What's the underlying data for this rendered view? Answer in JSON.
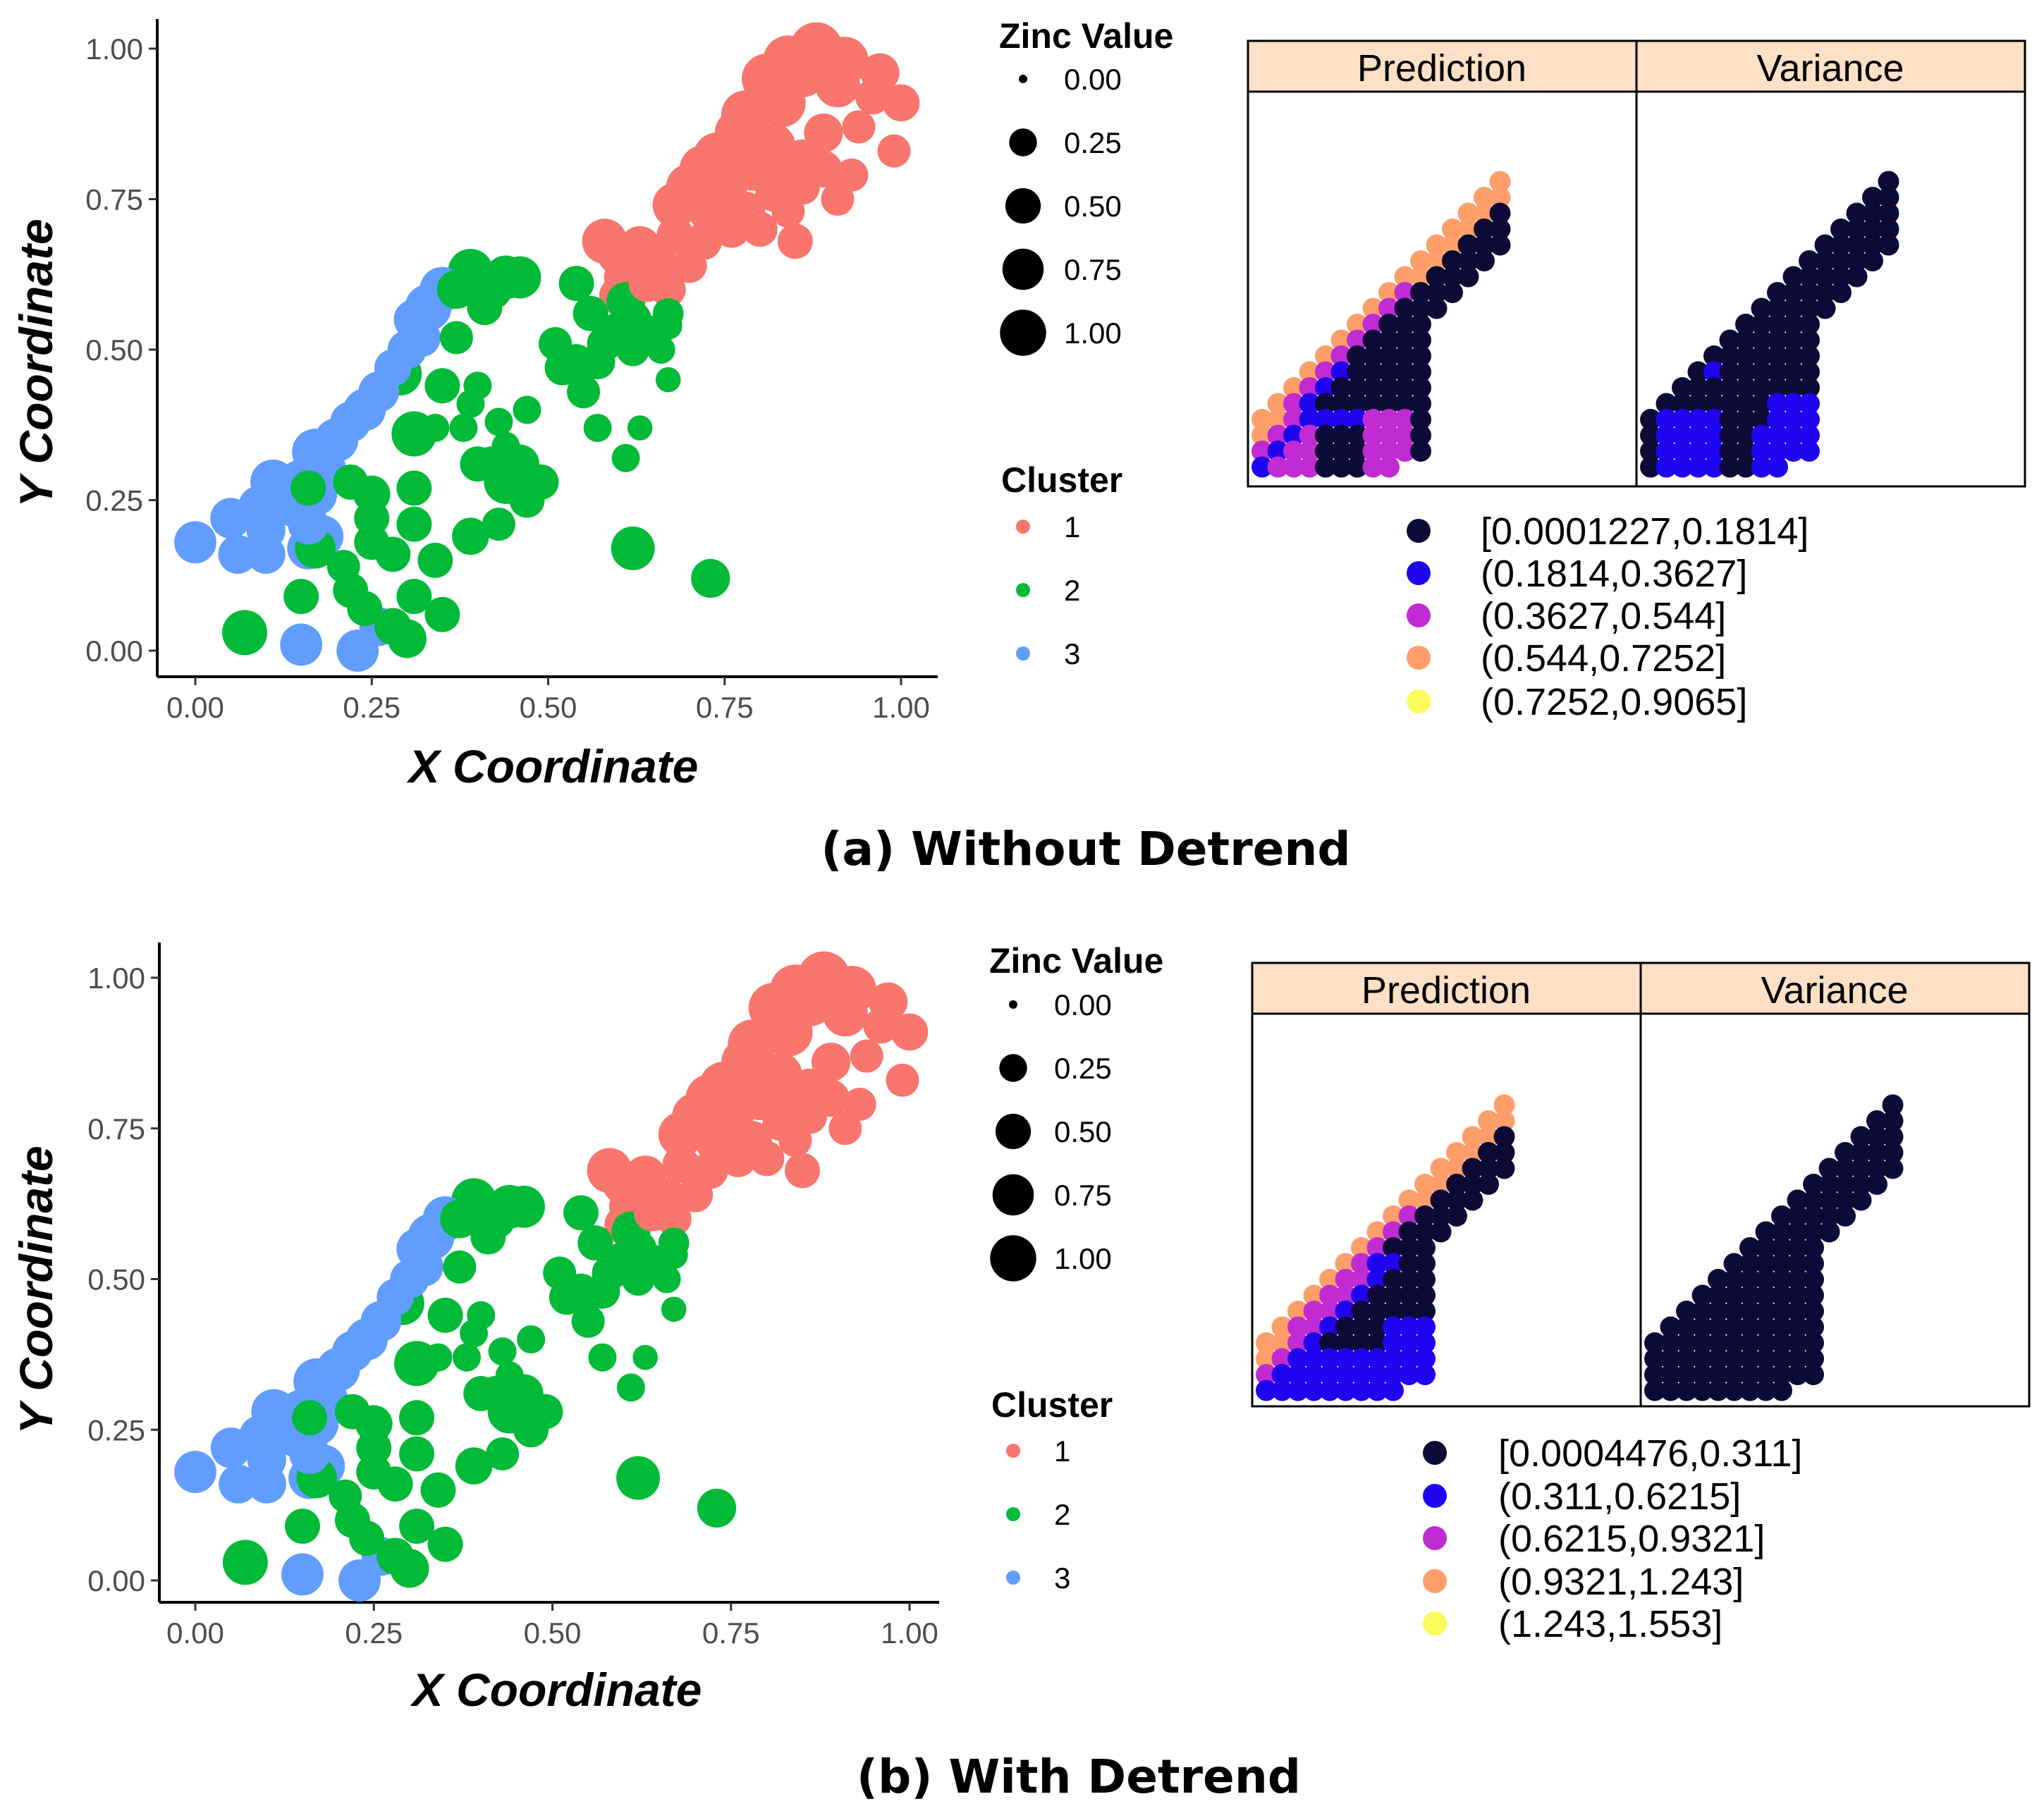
{
  "chart_data": [
    {
      "id": "a",
      "caption": "(a) Without Detrend",
      "scatter": {
        "type": "scatter",
        "xlabel": "X Coordinate",
        "ylabel": "Y Coordinate",
        "xlim": [
          -0.05,
          1.05
        ],
        "ylim": [
          -0.045,
          1.045
        ],
        "xticks": [
          "0.00",
          "0.25",
          "0.50",
          "0.75",
          "1.00"
        ],
        "yticks": [
          "0.00",
          "0.25",
          "0.50",
          "0.75",
          "1.00"
        ],
        "size_legend": {
          "title": "Zinc Value",
          "labels": [
            "0.00",
            "0.25",
            "0.50",
            "0.75",
            "1.00"
          ]
        },
        "cluster_legend": {
          "title": "Cluster",
          "labels": [
            "1",
            "2",
            "3"
          ]
        },
        "cluster_colors": {
          "1": "#F8766D",
          "2": "#00BA38",
          "3": "#619CFF"
        },
        "points": [
          [
            0.88,
            1.0,
            0.9,
            1
          ],
          [
            0.84,
            0.98,
            0.8,
            1
          ],
          [
            0.92,
            0.98,
            0.7,
            1
          ],
          [
            0.81,
            0.95,
            0.8,
            1
          ],
          [
            0.86,
            0.96,
            0.75,
            1
          ],
          [
            0.97,
            0.96,
            0.4,
            1
          ],
          [
            0.91,
            0.94,
            0.6,
            1
          ],
          [
            0.96,
            0.92,
            0.3,
            1
          ],
          [
            1.0,
            0.91,
            0.35,
            1
          ],
          [
            0.83,
            0.91,
            0.75,
            1
          ],
          [
            0.78,
            0.89,
            0.75,
            1
          ],
          [
            0.94,
            0.87,
            0.25,
            1
          ],
          [
            0.89,
            0.86,
            0.4,
            1
          ],
          [
            0.77,
            0.86,
            0.7,
            1
          ],
          [
            0.82,
            0.84,
            0.5,
            1
          ],
          [
            0.86,
            0.82,
            0.3,
            1
          ],
          [
            0.74,
            0.82,
            0.75,
            1
          ],
          [
            0.99,
            0.83,
            0.25,
            1
          ],
          [
            0.79,
            0.8,
            0.55,
            1
          ],
          [
            0.72,
            0.8,
            0.7,
            1
          ],
          [
            0.84,
            0.8,
            0.25,
            1
          ],
          [
            0.89,
            0.8,
            0.35,
            1
          ],
          [
            0.93,
            0.79,
            0.25,
            1
          ],
          [
            0.7,
            0.77,
            0.65,
            1
          ],
          [
            0.75,
            0.77,
            0.6,
            1
          ],
          [
            0.82,
            0.76,
            0.35,
            1
          ],
          [
            0.86,
            0.77,
            0.3,
            1
          ],
          [
            0.91,
            0.75,
            0.25,
            1
          ],
          [
            0.68,
            0.74,
            0.6,
            1
          ],
          [
            0.73,
            0.73,
            0.55,
            1
          ],
          [
            0.78,
            0.73,
            0.4,
            1
          ],
          [
            0.84,
            0.73,
            0.25,
            1
          ],
          [
            0.76,
            0.7,
            0.35,
            1
          ],
          [
            0.8,
            0.7,
            0.3,
            1
          ],
          [
            0.85,
            0.68,
            0.3,
            1
          ],
          [
            0.68,
            0.69,
            0.35,
            1
          ],
          [
            0.72,
            0.68,
            0.35,
            1
          ],
          [
            0.63,
            0.67,
            0.5,
            1
          ],
          [
            0.58,
            0.68,
            0.6,
            1
          ],
          [
            0.6,
            0.66,
            0.55,
            1
          ],
          [
            0.66,
            0.64,
            0.3,
            1
          ],
          [
            0.7,
            0.64,
            0.3,
            1
          ],
          [
            0.61,
            0.62,
            0.55,
            1
          ],
          [
            0.64,
            0.61,
            0.35,
            1
          ],
          [
            0.67,
            0.6,
            0.3,
            1
          ],
          [
            0.6,
            0.59,
            0.4,
            1
          ],
          [
            0.39,
            0.63,
            0.6,
            2
          ],
          [
            0.44,
            0.62,
            0.55,
            2
          ],
          [
            0.46,
            0.62,
            0.5,
            2
          ],
          [
            0.42,
            0.6,
            0.45,
            2
          ],
          [
            0.37,
            0.6,
            0.4,
            2
          ],
          [
            0.54,
            0.61,
            0.3,
            2
          ],
          [
            0.41,
            0.57,
            0.3,
            2
          ],
          [
            0.61,
            0.58,
            0.4,
            2
          ],
          [
            0.56,
            0.56,
            0.3,
            2
          ],
          [
            0.62,
            0.55,
            0.35,
            2
          ],
          [
            0.67,
            0.56,
            0.2,
            2
          ],
          [
            0.6,
            0.53,
            0.4,
            2
          ],
          [
            0.64,
            0.53,
            0.25,
            2
          ],
          [
            0.67,
            0.54,
            0.15,
            2
          ],
          [
            0.37,
            0.52,
            0.25,
            2
          ],
          [
            0.51,
            0.51,
            0.25,
            2
          ],
          [
            0.58,
            0.51,
            0.3,
            2
          ],
          [
            0.62,
            0.5,
            0.25,
            2
          ],
          [
            0.66,
            0.5,
            0.15,
            2
          ],
          [
            0.57,
            0.48,
            0.3,
            2
          ],
          [
            0.54,
            0.48,
            0.3,
            2
          ],
          [
            0.52,
            0.47,
            0.3,
            2
          ],
          [
            0.67,
            0.45,
            0.1,
            2
          ],
          [
            0.29,
            0.46,
            0.55,
            2
          ],
          [
            0.4,
            0.44,
            0.15,
            2
          ],
          [
            0.35,
            0.44,
            0.3,
            2
          ],
          [
            0.55,
            0.43,
            0.25,
            2
          ],
          [
            0.39,
            0.41,
            0.15,
            2
          ],
          [
            0.47,
            0.4,
            0.15,
            2
          ],
          [
            0.38,
            0.37,
            0.15,
            2
          ],
          [
            0.43,
            0.38,
            0.15,
            2
          ],
          [
            0.34,
            0.37,
            0.15,
            2
          ],
          [
            0.57,
            0.37,
            0.15,
            2
          ],
          [
            0.63,
            0.37,
            0.1,
            2
          ],
          [
            0.31,
            0.36,
            0.6,
            2
          ],
          [
            0.44,
            0.34,
            0.15,
            2
          ],
          [
            0.61,
            0.32,
            0.15,
            2
          ],
          [
            0.42,
            0.31,
            0.3,
            2
          ],
          [
            0.46,
            0.31,
            0.4,
            2
          ],
          [
            0.4,
            0.31,
            0.3,
            2
          ],
          [
            0.22,
            0.28,
            0.3,
            2
          ],
          [
            0.44,
            0.28,
            0.55,
            2
          ],
          [
            0.49,
            0.28,
            0.3,
            2
          ],
          [
            0.16,
            0.27,
            0.3,
            2
          ],
          [
            0.25,
            0.26,
            0.35,
            2
          ],
          [
            0.31,
            0.27,
            0.3,
            2
          ],
          [
            0.25,
            0.22,
            0.3,
            2
          ],
          [
            0.31,
            0.21,
            0.3,
            2
          ],
          [
            0.39,
            0.19,
            0.35,
            2
          ],
          [
            0.47,
            0.25,
            0.3,
            2
          ],
          [
            0.43,
            0.21,
            0.25,
            2
          ],
          [
            0.62,
            0.17,
            0.55,
            2
          ],
          [
            0.25,
            0.18,
            0.3,
            2
          ],
          [
            0.17,
            0.17,
            0.45,
            2
          ],
          [
            0.21,
            0.14,
            0.25,
            2
          ],
          [
            0.28,
            0.16,
            0.3,
            2
          ],
          [
            0.34,
            0.15,
            0.3,
            2
          ],
          [
            0.73,
            0.12,
            0.4,
            2
          ],
          [
            0.15,
            0.09,
            0.3,
            2
          ],
          [
            0.22,
            0.1,
            0.3,
            2
          ],
          [
            0.24,
            0.07,
            0.3,
            2
          ],
          [
            0.31,
            0.09,
            0.3,
            2
          ],
          [
            0.28,
            0.04,
            0.35,
            2
          ],
          [
            0.35,
            0.06,
            0.3,
            2
          ],
          [
            0.07,
            0.03,
            0.6,
            2
          ],
          [
            0.3,
            0.02,
            0.4,
            2
          ],
          [
            0.35,
            0.6,
            0.6,
            3
          ],
          [
            0.33,
            0.57,
            0.65,
            3
          ],
          [
            0.31,
            0.55,
            0.45,
            3
          ],
          [
            0.32,
            0.52,
            0.4,
            3
          ],
          [
            0.3,
            0.5,
            0.4,
            3
          ],
          [
            0.28,
            0.47,
            0.35,
            3
          ],
          [
            0.26,
            0.43,
            0.45,
            3
          ],
          [
            0.24,
            0.4,
            0.5,
            3
          ],
          [
            0.22,
            0.38,
            0.45,
            3
          ],
          [
            0.2,
            0.35,
            0.55,
            3
          ],
          [
            0.17,
            0.33,
            0.65,
            3
          ],
          [
            0.18,
            0.3,
            0.7,
            3
          ],
          [
            0.15,
            0.28,
            0.6,
            3
          ],
          [
            0.11,
            0.28,
            0.6,
            3
          ],
          [
            0.17,
            0.26,
            0.55,
            3
          ],
          [
            0.14,
            0.24,
            0.5,
            3
          ],
          [
            0.09,
            0.24,
            0.45,
            3
          ],
          [
            0.05,
            0.22,
            0.45,
            3
          ],
          [
            0.16,
            0.21,
            0.45,
            3
          ],
          [
            0.18,
            0.19,
            0.5,
            3
          ],
          [
            0.1,
            0.2,
            0.4,
            3
          ],
          [
            0.0,
            0.18,
            0.5,
            3
          ],
          [
            0.06,
            0.16,
            0.4,
            3
          ],
          [
            0.1,
            0.16,
            0.4,
            3
          ],
          [
            0.16,
            0.17,
            0.5,
            3
          ],
          [
            0.26,
            0.04,
            0.4,
            3
          ],
          [
            0.15,
            0.01,
            0.5,
            3
          ],
          [
            0.23,
            0.0,
            0.5,
            3
          ]
        ]
      },
      "maps": {
        "strip_labels": [
          "Prediction",
          "Variance"
        ],
        "strip_fill": "#FDE0C5",
        "legend_labels": [
          "[0.0001227,0.1814]",
          "(0.1814,0.3627]",
          "(0.3627,0.544]",
          "(0.544,0.7252]",
          "(0.7252,0.9065]"
        ],
        "legend_colors": [
          "#0D0A37",
          "#1F05EE",
          "#C02BD3",
          "#FF9E6A",
          "#FCFA5A"
        ],
        "prediction_pattern": "a",
        "variance_pattern": "a"
      }
    },
    {
      "id": "b",
      "caption": "(b) With Detrend",
      "scatter": {
        "type": "scatter",
        "xlabel": "X Coordinate",
        "ylabel": "Y Coordinate",
        "xlim": [
          -0.05,
          1.05
        ],
        "ylim": [
          -0.045,
          1.045
        ],
        "xticks": [
          "0.00",
          "0.25",
          "0.50",
          "0.75",
          "1.00"
        ],
        "yticks": [
          "0.00",
          "0.25",
          "0.50",
          "0.75",
          "1.00"
        ],
        "size_legend": {
          "title": "Zinc Value",
          "labels": [
            "0.00",
            "0.25",
            "0.50",
            "0.75",
            "1.00"
          ]
        },
        "cluster_legend": {
          "title": "Cluster",
          "labels": [
            "1",
            "2",
            "3"
          ]
        },
        "cluster_colors": {
          "1": "#F8766D",
          "2": "#00BA38",
          "3": "#619CFF"
        },
        "points": "same_as_a"
      },
      "maps": {
        "strip_labels": [
          "Prediction",
          "Variance"
        ],
        "strip_fill": "#FDE0C5",
        "legend_labels": [
          "[0.0004476,0.311]",
          "(0.311,0.6215]",
          "(0.6215,0.9321]",
          "(0.9321,1.243]",
          "(1.243,1.553]"
        ],
        "legend_colors": [
          "#0D0A37",
          "#1F05EE",
          "#C02BD3",
          "#FF9E6A",
          "#FCFA5A"
        ],
        "prediction_pattern": "b",
        "variance_pattern": "b"
      }
    }
  ]
}
